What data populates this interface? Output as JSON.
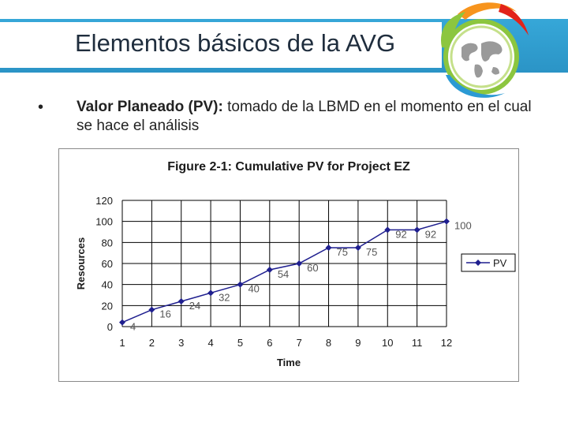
{
  "slide": {
    "title": "Elementos básicos de la AVG",
    "bullet_bold": "Valor Planeado (PV):",
    "bullet_rest": " tomado de la LBMD en el momento en el cual se hace el análisis"
  },
  "colors": {
    "title_bar": "#2b94c6",
    "series": "#1f1f8f"
  },
  "chart_data": {
    "type": "line",
    "title": "Figure 2-1: Cumulative PV for Project EZ",
    "xlabel": "Time",
    "ylabel": "Resources",
    "x": [
      1,
      2,
      3,
      4,
      5,
      6,
      7,
      8,
      9,
      10,
      11,
      12
    ],
    "series": [
      {
        "name": "PV",
        "values": [
          4,
          16,
          24,
          32,
          40,
          54,
          60,
          75,
          75,
          92,
          92,
          100
        ]
      }
    ],
    "data_labels": [
      "4",
      "16",
      "24",
      "32",
      "40",
      "54",
      "60",
      "75",
      "75",
      "92",
      "92",
      "100"
    ],
    "ylim": [
      0,
      120
    ],
    "yticks": [
      0,
      20,
      40,
      60,
      80,
      100,
      120
    ],
    "grid": true,
    "legend": "right"
  }
}
